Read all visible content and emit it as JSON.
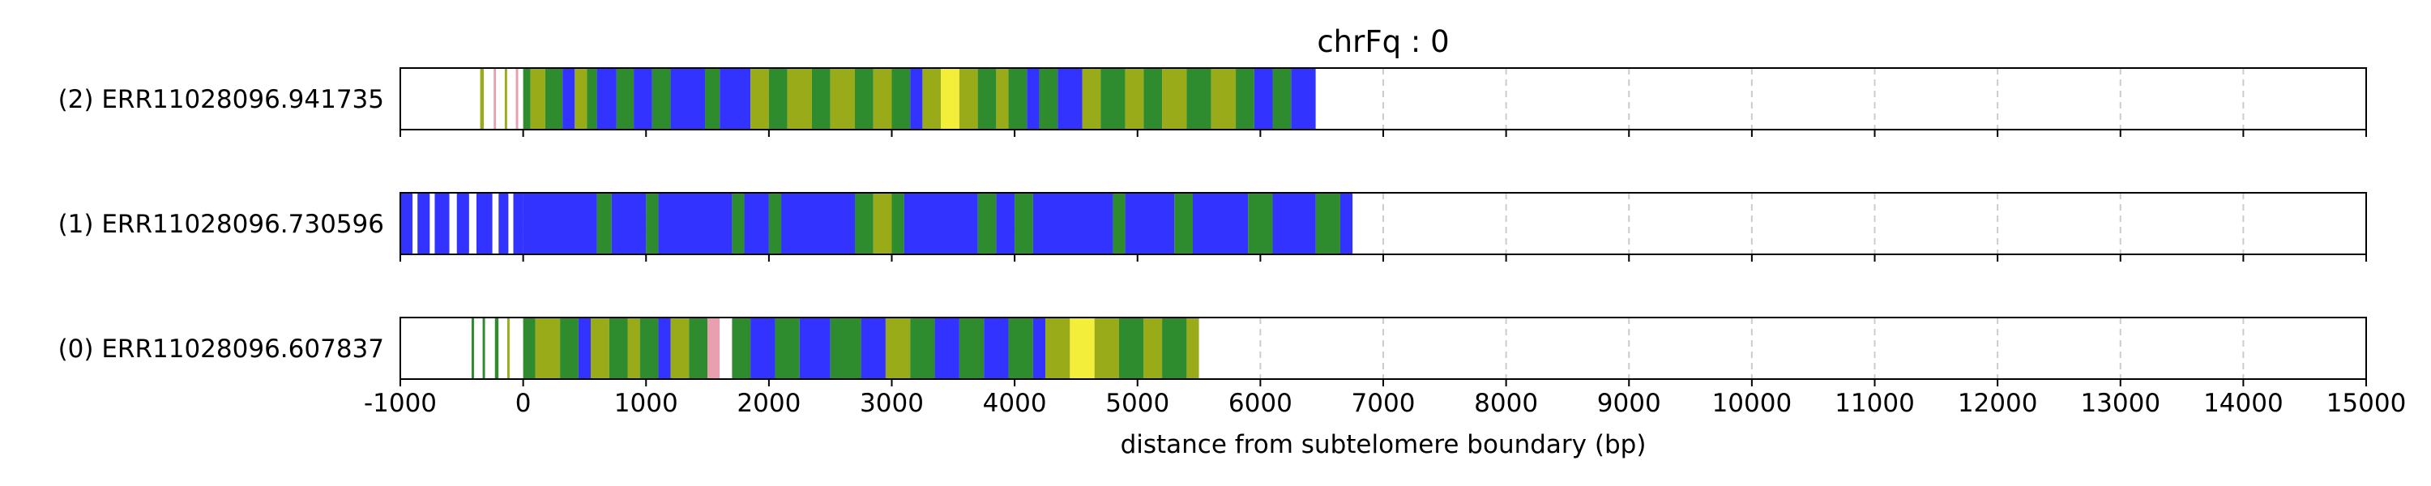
{
  "chart_data": {
    "type": "heatmap",
    "title": "chrFq : 0",
    "xlabel": "distance from subtelomere boundary (bp)",
    "ylabel": "",
    "xlim": [
      -1000,
      15000
    ],
    "xticks": [
      -1000,
      0,
      1000,
      2000,
      3000,
      4000,
      5000,
      6000,
      7000,
      8000,
      9000,
      10000,
      11000,
      12000,
      13000,
      14000,
      15000
    ],
    "xtick_labels": [
      "-1000",
      "0",
      "1000",
      "2000",
      "3000",
      "4000",
      "5000",
      "6000",
      "7000",
      "8000",
      "9000",
      "10000",
      "11000",
      "12000",
      "13000",
      "14000",
      "15000"
    ],
    "grid": "vertical dashed at x ticks",
    "colors": {
      "blue": "#3333ff",
      "green": "#2e8b2e",
      "olive": "#9aab1a",
      "yellow": "#f2ee3a",
      "white": "#ffffff",
      "pink": "#e8a0b0",
      "red": "#d03030",
      "grid": "#cccccc"
    },
    "reads": [
      {
        "label": "(2) ERR11028096.941735",
        "start": -600,
        "end": 6450,
        "segments": [
          [
            -600,
            -350,
            "white"
          ],
          [
            -350,
            -320,
            "olive"
          ],
          [
            -320,
            -240,
            "white"
          ],
          [
            -240,
            -220,
            "pink"
          ],
          [
            -220,
            -150,
            "white"
          ],
          [
            -150,
            -130,
            "olive"
          ],
          [
            -130,
            -60,
            "white"
          ],
          [
            -60,
            -40,
            "pink"
          ],
          [
            -40,
            0,
            "white"
          ],
          [
            0,
            60,
            "green"
          ],
          [
            60,
            180,
            "olive"
          ],
          [
            180,
            320,
            "green"
          ],
          [
            320,
            420,
            "blue"
          ],
          [
            420,
            520,
            "olive"
          ],
          [
            520,
            600,
            "green"
          ],
          [
            600,
            760,
            "blue"
          ],
          [
            760,
            900,
            "green"
          ],
          [
            900,
            1050,
            "blue"
          ],
          [
            1050,
            1200,
            "green"
          ],
          [
            1200,
            1480,
            "blue"
          ],
          [
            1480,
            1600,
            "green"
          ],
          [
            1600,
            1850,
            "blue"
          ],
          [
            1850,
            2000,
            "olive"
          ],
          [
            2000,
            2150,
            "green"
          ],
          [
            2150,
            2350,
            "olive"
          ],
          [
            2350,
            2500,
            "green"
          ],
          [
            2500,
            2700,
            "olive"
          ],
          [
            2700,
            2850,
            "green"
          ],
          [
            2850,
            3000,
            "olive"
          ],
          [
            3000,
            3150,
            "green"
          ],
          [
            3150,
            3250,
            "blue"
          ],
          [
            3250,
            3400,
            "olive"
          ],
          [
            3400,
            3550,
            "yellow"
          ],
          [
            3550,
            3700,
            "olive"
          ],
          [
            3700,
            3850,
            "green"
          ],
          [
            3850,
            3950,
            "olive"
          ],
          [
            3950,
            4100,
            "green"
          ],
          [
            4100,
            4200,
            "blue"
          ],
          [
            4200,
            4350,
            "green"
          ],
          [
            4350,
            4550,
            "blue"
          ],
          [
            4550,
            4700,
            "olive"
          ],
          [
            4700,
            4900,
            "green"
          ],
          [
            4900,
            5050,
            "olive"
          ],
          [
            5050,
            5200,
            "green"
          ],
          [
            5200,
            5400,
            "olive"
          ],
          [
            5400,
            5600,
            "green"
          ],
          [
            5600,
            5800,
            "olive"
          ],
          [
            5800,
            5950,
            "green"
          ],
          [
            5950,
            6100,
            "blue"
          ],
          [
            6100,
            6250,
            "green"
          ],
          [
            6250,
            6450,
            "blue"
          ]
        ]
      },
      {
        "label": "(1) ERR11028096.730596",
        "start": -1000,
        "end": 6750,
        "segments": [
          [
            -1000,
            -900,
            "blue"
          ],
          [
            -900,
            -860,
            "white"
          ],
          [
            -860,
            -760,
            "blue"
          ],
          [
            -760,
            -720,
            "white"
          ],
          [
            -720,
            -600,
            "blue"
          ],
          [
            -600,
            -540,
            "white"
          ],
          [
            -540,
            -440,
            "blue"
          ],
          [
            -440,
            -380,
            "white"
          ],
          [
            -380,
            -250,
            "blue"
          ],
          [
            -250,
            -200,
            "white"
          ],
          [
            -200,
            -120,
            "blue"
          ],
          [
            -120,
            -80,
            "white"
          ],
          [
            -80,
            0,
            "blue"
          ],
          [
            0,
            600,
            "blue"
          ],
          [
            600,
            720,
            "green"
          ],
          [
            720,
            1000,
            "blue"
          ],
          [
            1000,
            1100,
            "green"
          ],
          [
            1100,
            1700,
            "blue"
          ],
          [
            1700,
            1800,
            "green"
          ],
          [
            1800,
            2000,
            "blue"
          ],
          [
            2000,
            2100,
            "green"
          ],
          [
            2100,
            2700,
            "blue"
          ],
          [
            2700,
            2850,
            "green"
          ],
          [
            2850,
            3000,
            "olive"
          ],
          [
            3000,
            3100,
            "green"
          ],
          [
            3100,
            3700,
            "blue"
          ],
          [
            3700,
            3850,
            "green"
          ],
          [
            3850,
            4000,
            "blue"
          ],
          [
            4000,
            4150,
            "green"
          ],
          [
            4150,
            4800,
            "blue"
          ],
          [
            4800,
            4900,
            "green"
          ],
          [
            4900,
            5300,
            "blue"
          ],
          [
            5300,
            5450,
            "green"
          ],
          [
            5450,
            5900,
            "blue"
          ],
          [
            5900,
            6100,
            "green"
          ],
          [
            6100,
            6450,
            "blue"
          ],
          [
            6450,
            6650,
            "green"
          ],
          [
            6650,
            6750,
            "blue"
          ]
        ]
      },
      {
        "label": "(0) ERR11028096.607837",
        "start": -420,
        "end": 5500,
        "segments": [
          [
            -420,
            -400,
            "green"
          ],
          [
            -400,
            -330,
            "white"
          ],
          [
            -330,
            -310,
            "green"
          ],
          [
            -310,
            -230,
            "white"
          ],
          [
            -230,
            -200,
            "green"
          ],
          [
            -200,
            -130,
            "white"
          ],
          [
            -130,
            -110,
            "olive"
          ],
          [
            -110,
            0,
            "white"
          ],
          [
            0,
            100,
            "green"
          ],
          [
            100,
            300,
            "olive"
          ],
          [
            300,
            450,
            "green"
          ],
          [
            450,
            550,
            "blue"
          ],
          [
            550,
            700,
            "olive"
          ],
          [
            700,
            850,
            "green"
          ],
          [
            850,
            950,
            "olive"
          ],
          [
            950,
            1100,
            "green"
          ],
          [
            1100,
            1200,
            "blue"
          ],
          [
            1200,
            1350,
            "olive"
          ],
          [
            1350,
            1500,
            "green"
          ],
          [
            1500,
            1600,
            "pink"
          ],
          [
            1600,
            1700,
            "white"
          ],
          [
            1700,
            1850,
            "green"
          ],
          [
            1850,
            2050,
            "blue"
          ],
          [
            2050,
            2250,
            "green"
          ],
          [
            2250,
            2500,
            "blue"
          ],
          [
            2500,
            2750,
            "green"
          ],
          [
            2750,
            2950,
            "blue"
          ],
          [
            2950,
            3150,
            "olive"
          ],
          [
            3150,
            3350,
            "green"
          ],
          [
            3350,
            3550,
            "blue"
          ],
          [
            3550,
            3750,
            "green"
          ],
          [
            3750,
            3950,
            "blue"
          ],
          [
            3950,
            4150,
            "green"
          ],
          [
            4150,
            4250,
            "blue"
          ],
          [
            4250,
            4450,
            "olive"
          ],
          [
            4450,
            4650,
            "yellow"
          ],
          [
            4650,
            4850,
            "olive"
          ],
          [
            4850,
            5050,
            "green"
          ],
          [
            5050,
            5200,
            "olive"
          ],
          [
            5200,
            5400,
            "green"
          ],
          [
            5400,
            5500,
            "olive"
          ]
        ]
      }
    ]
  }
}
